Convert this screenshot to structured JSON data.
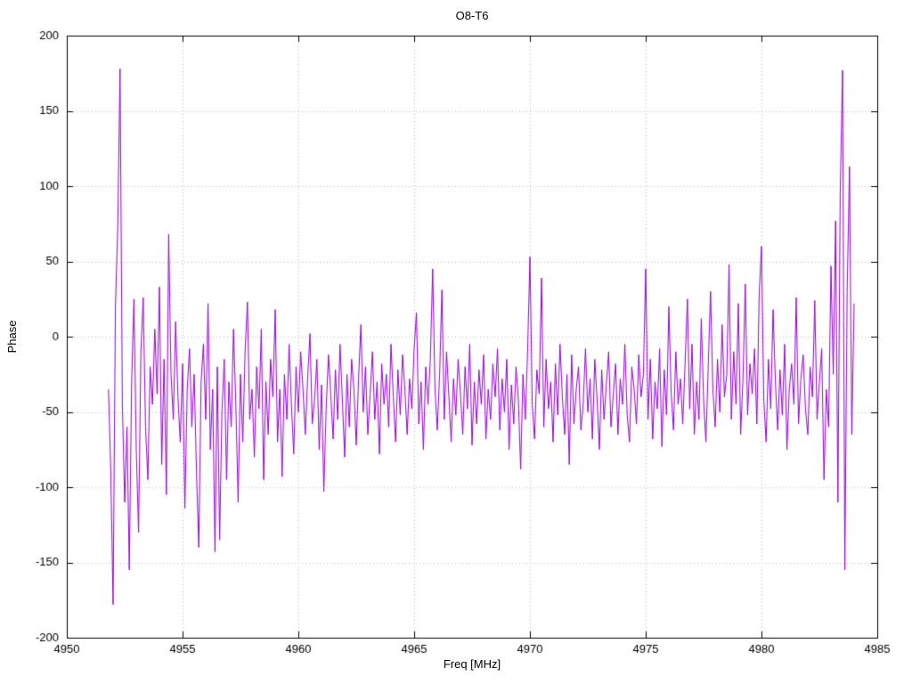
{
  "chart_data": {
    "type": "line",
    "title": "O8-T6",
    "xlabel": "Freq [MHz]",
    "ylabel": "Phase",
    "xlim": [
      4950,
      4985
    ],
    "ylim": [
      -200,
      200
    ],
    "x_ticks": [
      4950,
      4955,
      4960,
      4965,
      4970,
      4975,
      4980,
      4985
    ],
    "y_ticks": [
      -200,
      -150,
      -100,
      -50,
      0,
      50,
      100,
      150,
      200
    ],
    "grid": true,
    "legend": "none",
    "line_color": "#9400d3",
    "grid_color": "#bbbbbb",
    "axis_color": "#000000",
    "series": [
      {
        "name": "phase",
        "x_start": 4951.8,
        "x_step": 0.1,
        "values": [
          -35,
          -90,
          -178,
          20,
          73,
          178,
          -45,
          -110,
          -60,
          -155,
          -30,
          25,
          -75,
          -130,
          -10,
          26,
          -60,
          -95,
          -20,
          -45,
          5,
          -38,
          33,
          -85,
          -15,
          -105,
          68,
          -25,
          -55,
          10,
          -40,
          -70,
          -18,
          -114,
          -35,
          -8,
          -60,
          -25,
          -90,
          -140,
          -30,
          -5,
          -55,
          22,
          -75,
          -35,
          -143,
          -20,
          -135,
          -50,
          -15,
          -95,
          -30,
          -60,
          5,
          -45,
          -110,
          -25,
          -70,
          -10,
          23,
          -55,
          -35,
          -80,
          -20,
          -48,
          5,
          -95,
          -30,
          -65,
          -15,
          -40,
          18,
          -70,
          -35,
          -93,
          -25,
          -55,
          -5,
          -45,
          -78,
          -20,
          -50,
          -10,
          -35,
          -65,
          -28,
          2,
          -58,
          -42,
          -15,
          -75,
          -32,
          -103,
          -48,
          -12,
          -38,
          -68,
          -22,
          -55,
          -5,
          -42,
          -80,
          -25,
          -60,
          -15,
          -35,
          -72,
          -28,
          8,
          -50,
          -20,
          -65,
          -38,
          -10,
          -55,
          -30,
          -78,
          -18,
          -45,
          -25,
          -60,
          -5,
          -40,
          -70,
          -22,
          -52,
          -12,
          -35,
          -65,
          -28,
          -48,
          -8,
          16,
          -58,
          -30,
          -75,
          -20,
          -45,
          -15,
          45,
          -35,
          -62,
          -25,
          31,
          -55,
          -10,
          -40,
          -70,
          -28,
          -52,
          -15,
          -38,
          -65,
          -20,
          -48,
          -5,
          -72,
          -30,
          -58,
          -22,
          -45,
          -12,
          -68,
          -35,
          -55,
          -18,
          -40,
          -8,
          -62,
          -28,
          -50,
          -15,
          -75,
          -32,
          -58,
          -20,
          -42,
          -88,
          -25,
          -55,
          -10,
          53,
          -45,
          -68,
          -22,
          -38,
          39,
          -60,
          -15,
          -48,
          -30,
          -70,
          -18,
          -52,
          -5,
          -40,
          -65,
          -25,
          -85,
          -12,
          -58,
          -35,
          -20,
          -62,
          -45,
          -8,
          -50,
          -28,
          -68,
          -15,
          -42,
          -75,
          -22,
          -55,
          -32,
          -10,
          -60,
          -38,
          -18,
          -65,
          -28,
          -45,
          -5,
          -52,
          -70,
          -20,
          -35,
          -58,
          -12,
          -40,
          -25,
          45,
          -55,
          -15,
          -68,
          -30,
          -48,
          -8,
          -73,
          -22,
          -52,
          20,
          -38,
          -62,
          -10,
          -45,
          -28,
          -58,
          -18,
          25,
          -48,
          -5,
          -65,
          -30,
          -55,
          12,
          -42,
          -70,
          -20,
          30,
          -35,
          -60,
          -15,
          -50,
          8,
          -40,
          -25,
          48,
          -55,
          -10,
          -45,
          22,
          -65,
          -28,
          35,
          -52,
          -18,
          -38,
          -8,
          -58,
          28,
          60,
          -42,
          -70,
          -15,
          -48,
          18,
          -30,
          -62,
          -22,
          -52,
          -5,
          -75,
          -35,
          -18,
          -45,
          26,
          -58,
          -28,
          -12,
          -48,
          -65,
          -20,
          -40,
          24,
          -55,
          -30,
          -8,
          -95,
          -35,
          -60,
          47,
          -25,
          77,
          -110,
          95,
          177,
          -155,
          30,
          113,
          -65,
          22
        ]
      }
    ]
  }
}
